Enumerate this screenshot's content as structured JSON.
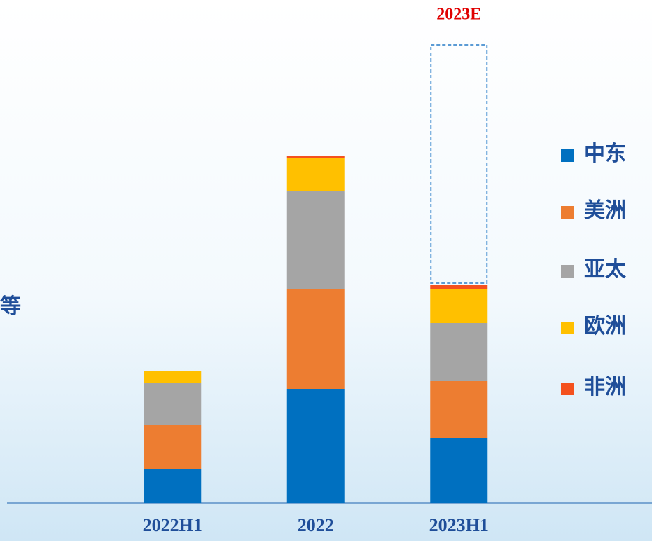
{
  "chart_data": {
    "type": "bar",
    "stacked": true,
    "annotation": "等",
    "categories": [
      "2022H1",
      "2022",
      "2023H1"
    ],
    "series": [
      {
        "name": "中东",
        "color": "#0070c0",
        "values": [
          49,
          163,
          93
        ]
      },
      {
        "name": "美洲",
        "color": "#ed7d31",
        "values": [
          62,
          143,
          81
        ]
      },
      {
        "name": "亚太",
        "color": "#a5a5a5",
        "values": [
          60,
          139,
          83
        ]
      },
      {
        "name": "欧洲",
        "color": "#ffc000",
        "values": [
          18,
          48,
          48
        ]
      },
      {
        "name": "非洲",
        "color": "#f4511e",
        "values": [
          0,
          2,
          7
        ]
      }
    ],
    "projection": {
      "label": "2023E",
      "color": "#5b9bd5",
      "values": [
        null,
        null,
        340
      ]
    },
    "ylim": [
      0,
      660
    ],
    "legend": "right"
  }
}
